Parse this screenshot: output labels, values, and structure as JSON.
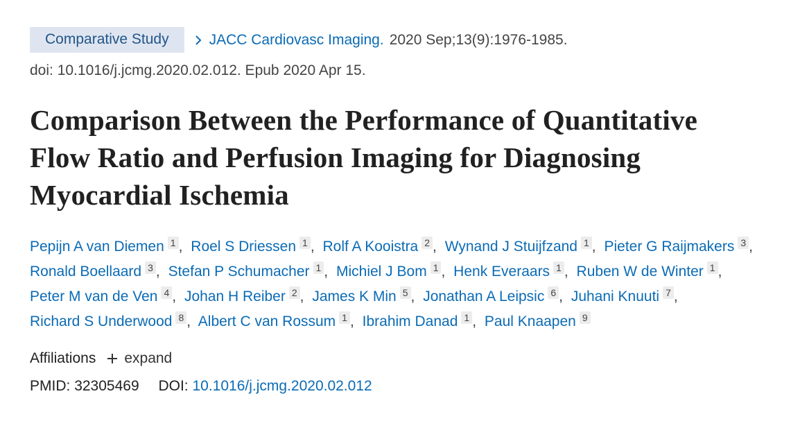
{
  "header": {
    "badge": "Comparative Study",
    "journal": "JACC Cardiovasc Imaging.",
    "citation": "2020 Sep;13(9):1976-1985.",
    "doi_line": "doi: 10.1016/j.jcmg.2020.02.012. Epub 2020 Apr 15."
  },
  "title": "Comparison Between the Performance of Quantitative Flow Ratio and Perfusion Imaging for Diagnosing Myocardial Ischemia",
  "separator": ",",
  "authors": [
    {
      "name": "Pepijn A van Diemen",
      "aff": "1"
    },
    {
      "name": "Roel S Driessen",
      "aff": "1"
    },
    {
      "name": "Rolf A Kooistra",
      "aff": "2"
    },
    {
      "name": "Wynand J Stuijfzand",
      "aff": "1"
    },
    {
      "name": "Pieter G Raijmakers",
      "aff": "3"
    },
    {
      "name": "Ronald Boellaard",
      "aff": "3"
    },
    {
      "name": "Stefan P Schumacher",
      "aff": "1"
    },
    {
      "name": "Michiel J Bom",
      "aff": "1"
    },
    {
      "name": "Henk Everaars",
      "aff": "1"
    },
    {
      "name": "Ruben W de Winter",
      "aff": "1"
    },
    {
      "name": "Peter M van de Ven",
      "aff": "4"
    },
    {
      "name": "Johan H Reiber",
      "aff": "2"
    },
    {
      "name": "James K Min",
      "aff": "5"
    },
    {
      "name": "Jonathan A Leipsic",
      "aff": "6"
    },
    {
      "name": "Juhani Knuuti",
      "aff": "7"
    },
    {
      "name": "Richard S Underwood",
      "aff": "8"
    },
    {
      "name": "Albert C van Rossum",
      "aff": "1"
    },
    {
      "name": "Ibrahim Danad",
      "aff": "1"
    },
    {
      "name": "Paul Knaapen",
      "aff": "9"
    }
  ],
  "affiliations": {
    "label": "Affiliations",
    "toggle": "expand"
  },
  "identifiers": {
    "pmid_label": "PMID:",
    "pmid": "32305469",
    "doi_label": "DOI:",
    "doi": "10.1016/j.jcmg.2020.02.012"
  }
}
